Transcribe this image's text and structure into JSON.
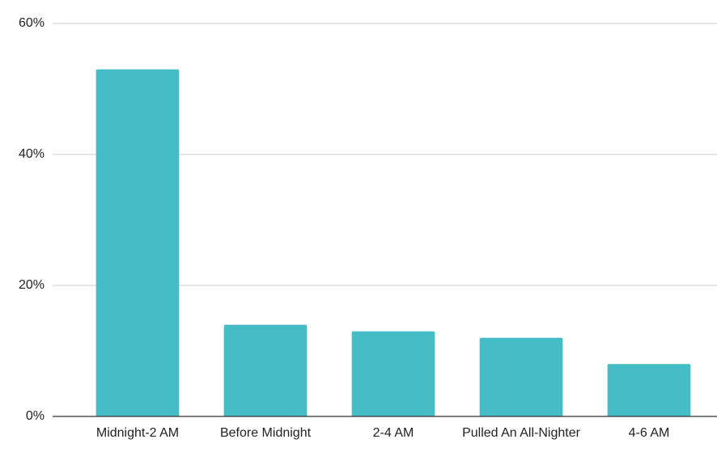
{
  "chart_data": {
    "type": "bar",
    "categories": [
      "Midnight-2 AM",
      "Before Midnight",
      "2-4 AM",
      "Pulled An All-Nighter",
      "4-6 AM"
    ],
    "values": [
      53,
      14,
      13,
      12,
      8
    ],
    "color": "#46bdc6",
    "ylim": [
      0,
      60
    ],
    "yticks": [
      {
        "value": 0,
        "label": "0%"
      },
      {
        "value": 20,
        "label": "20%"
      },
      {
        "value": 40,
        "label": "40%"
      },
      {
        "value": 60,
        "label": "60%"
      }
    ],
    "grid": true
  }
}
